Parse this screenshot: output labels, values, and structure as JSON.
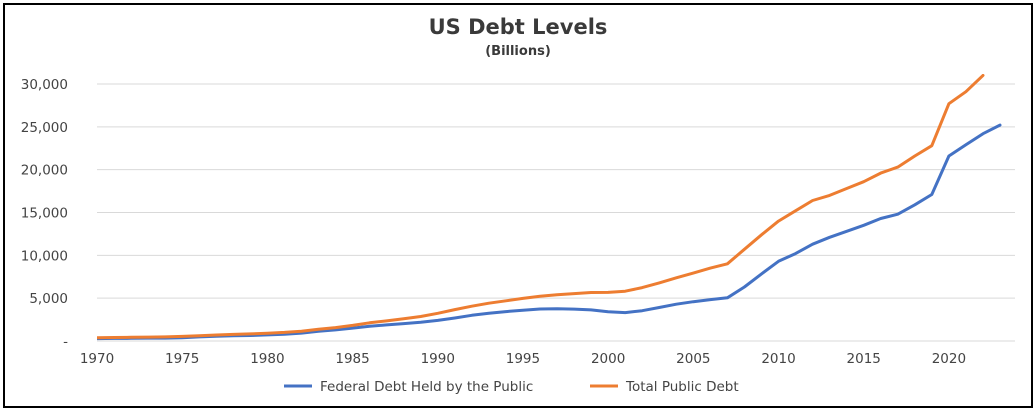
{
  "chart_data": {
    "type": "line",
    "title": "US Debt Levels",
    "subtitle": "(Billions)",
    "xlabel": "",
    "ylabel": "",
    "xlim": [
      1970,
      2023
    ],
    "ylim": [
      0,
      30000
    ],
    "grid": true,
    "legend_position": "bottom",
    "y_ticks": [
      {
        "value": 0,
        "label": "-"
      },
      {
        "value": 5000,
        "label": "5,000"
      },
      {
        "value": 10000,
        "label": "10,000"
      },
      {
        "value": 15000,
        "label": "15,000"
      },
      {
        "value": 20000,
        "label": "20,000"
      },
      {
        "value": 25000,
        "label": "25,000"
      },
      {
        "value": 30000,
        "label": "30,000"
      }
    ],
    "x_ticks": [
      1970,
      1975,
      1980,
      1985,
      1990,
      1995,
      2000,
      2005,
      2010,
      2015,
      2020
    ],
    "series": [
      {
        "name": "Federal Debt Held by the Public",
        "color": "#4472c4",
        "x": [
          1970,
          1971,
          1972,
          1973,
          1974,
          1975,
          1976,
          1977,
          1978,
          1979,
          1980,
          1981,
          1982,
          1983,
          1984,
          1985,
          1986,
          1987,
          1988,
          1989,
          1990,
          1991,
          1992,
          1993,
          1994,
          1995,
          1996,
          1997,
          1998,
          1999,
          2000,
          2001,
          2002,
          2003,
          2004,
          2005,
          2006,
          2007,
          2008,
          2009,
          2010,
          2011,
          2012,
          2013,
          2014,
          2015,
          2016,
          2017,
          2018,
          2019,
          2020,
          2021,
          2022,
          2023
        ],
        "values": [
          280,
          300,
          320,
          340,
          340,
          390,
          480,
          550,
          610,
          640,
          710,
          790,
          920,
          1140,
          1300,
          1500,
          1730,
          1880,
          2030,
          2190,
          2410,
          2690,
          3000,
          3250,
          3430,
          3600,
          3730,
          3770,
          3720,
          3630,
          3410,
          3320,
          3540,
          3910,
          4300,
          4590,
          4830,
          5040,
          6300,
          7830,
          9300,
          10200,
          11300,
          12100,
          12800,
          13500,
          14300,
          14800,
          15900,
          17100,
          21600,
          22900,
          24200,
          25200
        ]
      },
      {
        "name": "Total Public Debt",
        "color": "#ed7d31",
        "x": [
          1970,
          1971,
          1972,
          1973,
          1974,
          1975,
          1976,
          1977,
          1978,
          1979,
          1980,
          1981,
          1982,
          1983,
          1984,
          1985,
          1986,
          1987,
          1988,
          1989,
          1990,
          1991,
          1992,
          1993,
          1994,
          1995,
          1996,
          1997,
          1998,
          1999,
          2000,
          2001,
          2002,
          2003,
          2004,
          2005,
          2006,
          2007,
          2008,
          2009,
          2010,
          2011,
          2012,
          2013,
          2014,
          2015,
          2016,
          2017,
          2018,
          2019,
          2020,
          2021,
          2022
        ],
        "values": [
          380,
          410,
          430,
          460,
          480,
          540,
          620,
          700,
          770,
          830,
          910,
          1000,
          1140,
          1370,
          1560,
          1820,
          2120,
          2350,
          2600,
          2860,
          3230,
          3660,
          4060,
          4410,
          4690,
          4970,
          5220,
          5410,
          5530,
          5660,
          5670,
          5810,
          6230,
          6780,
          7380,
          7930,
          8510,
          9010,
          10700,
          12400,
          14000,
          15200,
          16400,
          17000,
          17800,
          18600,
          19600,
          20300,
          21600,
          22800,
          27700,
          29100,
          31000
        ]
      }
    ]
  }
}
